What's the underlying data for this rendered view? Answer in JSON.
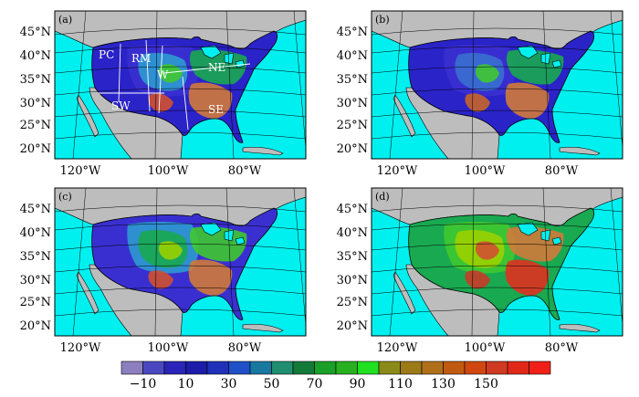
{
  "panels": [
    {
      "label": "(a)",
      "palette": [
        "#2a24c8",
        "#3a30d0",
        "#2e9ad0",
        "#1aa850",
        "#40c830",
        "#d07a3a",
        "#d05030"
      ]
    },
    {
      "label": "(b)",
      "palette": [
        "#2a24c8",
        "#3a30d0",
        "#3a6fd0",
        "#1aa850",
        "#40c830",
        "#d07a3a",
        "#c8642a"
      ]
    },
    {
      "label": "(c)",
      "palette": [
        "#3a30d0",
        "#2e9ad0",
        "#1aa850",
        "#40c830",
        "#9ad000",
        "#d07a3a",
        "#d05030"
      ]
    },
    {
      "label": "(d)",
      "palette": [
        "#1aa850",
        "#40c830",
        "#9ad000",
        "#d07a3a",
        "#d05030",
        "#e03020",
        "#c83a28"
      ]
    }
  ],
  "lat_labels": [
    "45°N",
    "40°N",
    "35°N",
    "30°N",
    "25°N",
    "20°N"
  ],
  "lon_labels": [
    "120°W",
    "100°W",
    "80°W"
  ],
  "regions": [
    "PC",
    "RM",
    "W",
    "NE",
    "SW",
    "SE"
  ],
  "colorbar": {
    "colors": [
      "#8c7fc0",
      "#4a48c0",
      "#2a24b8",
      "#1c1ca8",
      "#2030b8",
      "#2050c8",
      "#1878a0",
      "#1f8f70",
      "#137a3a",
      "#1aa028",
      "#28b020",
      "#20e020",
      "#8a8a18",
      "#9c7a18",
      "#b0701a",
      "#c05a10",
      "#d04810",
      "#d03a20",
      "#e02818",
      "#f02018"
    ],
    "labels": [
      "−10",
      "10",
      "30",
      "50",
      "70",
      "90",
      "110",
      "130",
      "150"
    ]
  },
  "colors": {
    "ocean": "#00f0f0",
    "land": "#bdbdbd"
  }
}
